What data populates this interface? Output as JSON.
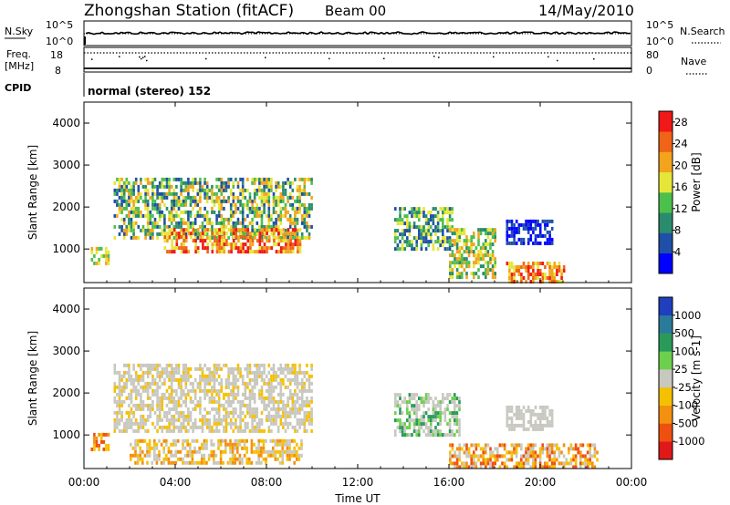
{
  "header": {
    "title": "Zhongshan Station (fitACF)",
    "beam": "Beam 00",
    "date": "14/May/2010"
  },
  "strip_panels": {
    "nsky": {
      "label": "N.Sky",
      "left_ticks": [
        "10^5",
        "10^0"
      ],
      "right_ticks": [
        "10^5",
        "10^0"
      ],
      "right_label": "N.Search"
    },
    "freq": {
      "label_line1": "Freq.",
      "label_line2": "[MHz]",
      "left_ticks": [
        18,
        8
      ],
      "right_ticks": [
        80,
        0
      ],
      "right_label": "Nave"
    },
    "cpid": {
      "label": "CPID",
      "text": "normal (stereo) 152"
    }
  },
  "chart_data": [
    {
      "type": "heatmap",
      "name": "power",
      "ylabel": "Slant Range [km]",
      "xlabel": "",
      "x_ticks": [
        "00:00",
        "04:00",
        "08:00",
        "12:00",
        "16:00",
        "20:00",
        "00:00"
      ],
      "xlim_hours": [
        0,
        24
      ],
      "y_ticks": [
        1000,
        2000,
        3000,
        4000
      ],
      "ylim": [
        200,
        4500
      ],
      "colorbar": {
        "label": "Power [dB]",
        "ticks": [
          4,
          8,
          12,
          16,
          20,
          24,
          28
        ],
        "range": [
          0,
          30
        ],
        "colors": [
          "#0000ff",
          "#1f4fa8",
          "#2a8c6c",
          "#4cc04c",
          "#e6e639",
          "#f3a41c",
          "#ef6417",
          "#f01818"
        ]
      },
      "regions": [
        {
          "t0": 0.3,
          "t1": 1.1,
          "r0": 700,
          "r1": 1050,
          "colors": [
            "#e6e639",
            "#f3a41c",
            "#4cc04c"
          ]
        },
        {
          "t0": 1.3,
          "t1": 10.0,
          "r0": 1300,
          "r1": 2700,
          "colors": [
            "#1f4fa8",
            "#2a8c6c",
            "#4cc04c",
            "#e6e639",
            "#f3a41c"
          ]
        },
        {
          "t0": 3.5,
          "t1": 9.5,
          "r0": 900,
          "r1": 1500,
          "colors": [
            "#f3a41c",
            "#ef6417",
            "#e6e639",
            "#f01818"
          ]
        },
        {
          "t0": 13.6,
          "t1": 16.2,
          "r0": 1000,
          "r1": 2000,
          "colors": [
            "#2a8c6c",
            "#4cc04c",
            "#e6e639",
            "#1f4fa8"
          ]
        },
        {
          "t0": 16.0,
          "t1": 18.0,
          "r0": 300,
          "r1": 1500,
          "colors": [
            "#4cc04c",
            "#e6e639",
            "#f3a41c",
            "#2a8c6c"
          ]
        },
        {
          "t0": 18.5,
          "t1": 21.0,
          "r0": 200,
          "r1": 700,
          "colors": [
            "#f3a41c",
            "#ef6417",
            "#f01818",
            "#e6e639"
          ]
        },
        {
          "t0": 18.5,
          "t1": 20.5,
          "r0": 1100,
          "r1": 1700,
          "colors": [
            "#1f4fa8",
            "#0000ff"
          ]
        }
      ]
    },
    {
      "type": "heatmap",
      "name": "velocity",
      "ylabel": "Slant Range [km]",
      "xlabel": "Time UT",
      "x_ticks": [
        "00:00",
        "04:00",
        "08:00",
        "12:00",
        "16:00",
        "20:00",
        "00:00"
      ],
      "xlim_hours": [
        0,
        24
      ],
      "y_ticks": [
        1000,
        2000,
        3000,
        4000
      ],
      "ylim": [
        200,
        4500
      ],
      "colorbar": {
        "label": "Velocity [m s-1]",
        "ticks": [
          1000,
          500,
          100,
          25,
          -25,
          -100,
          -500,
          -1000
        ],
        "colors": [
          "#1f3fbf",
          "#2a7a9a",
          "#2a9a5a",
          "#6dd04c",
          "#c8c8c0",
          "#f5c000",
          "#f39010",
          "#ef5010",
          "#e01818"
        ]
      },
      "regions": [
        {
          "t0": 0.3,
          "t1": 1.1,
          "r0": 700,
          "r1": 1050,
          "colors": [
            "#f39010",
            "#ef5010",
            "#f5c000"
          ]
        },
        {
          "t0": 1.3,
          "t1": 10.0,
          "r0": 1100,
          "r1": 2700,
          "colors": [
            "#c8c8c0",
            "#c8c8c0",
            "#c8c8c0",
            "#f5c000"
          ]
        },
        {
          "t0": 2.0,
          "t1": 9.5,
          "r0": 300,
          "r1": 900,
          "colors": [
            "#f39010",
            "#f5c000",
            "#c8c8c0"
          ]
        },
        {
          "t0": 13.6,
          "t1": 16.5,
          "r0": 1000,
          "r1": 2000,
          "colors": [
            "#c8c8c0",
            "#c8c8c0",
            "#6dd04c",
            "#2a9a5a"
          ]
        },
        {
          "t0": 16.0,
          "t1": 22.5,
          "r0": 200,
          "r1": 800,
          "colors": [
            "#f39010",
            "#f5c000",
            "#ef5010",
            "#c8c8c0"
          ]
        },
        {
          "t0": 18.5,
          "t1": 20.5,
          "r0": 1100,
          "r1": 1700,
          "colors": [
            "#c8c8c0"
          ]
        }
      ]
    }
  ]
}
